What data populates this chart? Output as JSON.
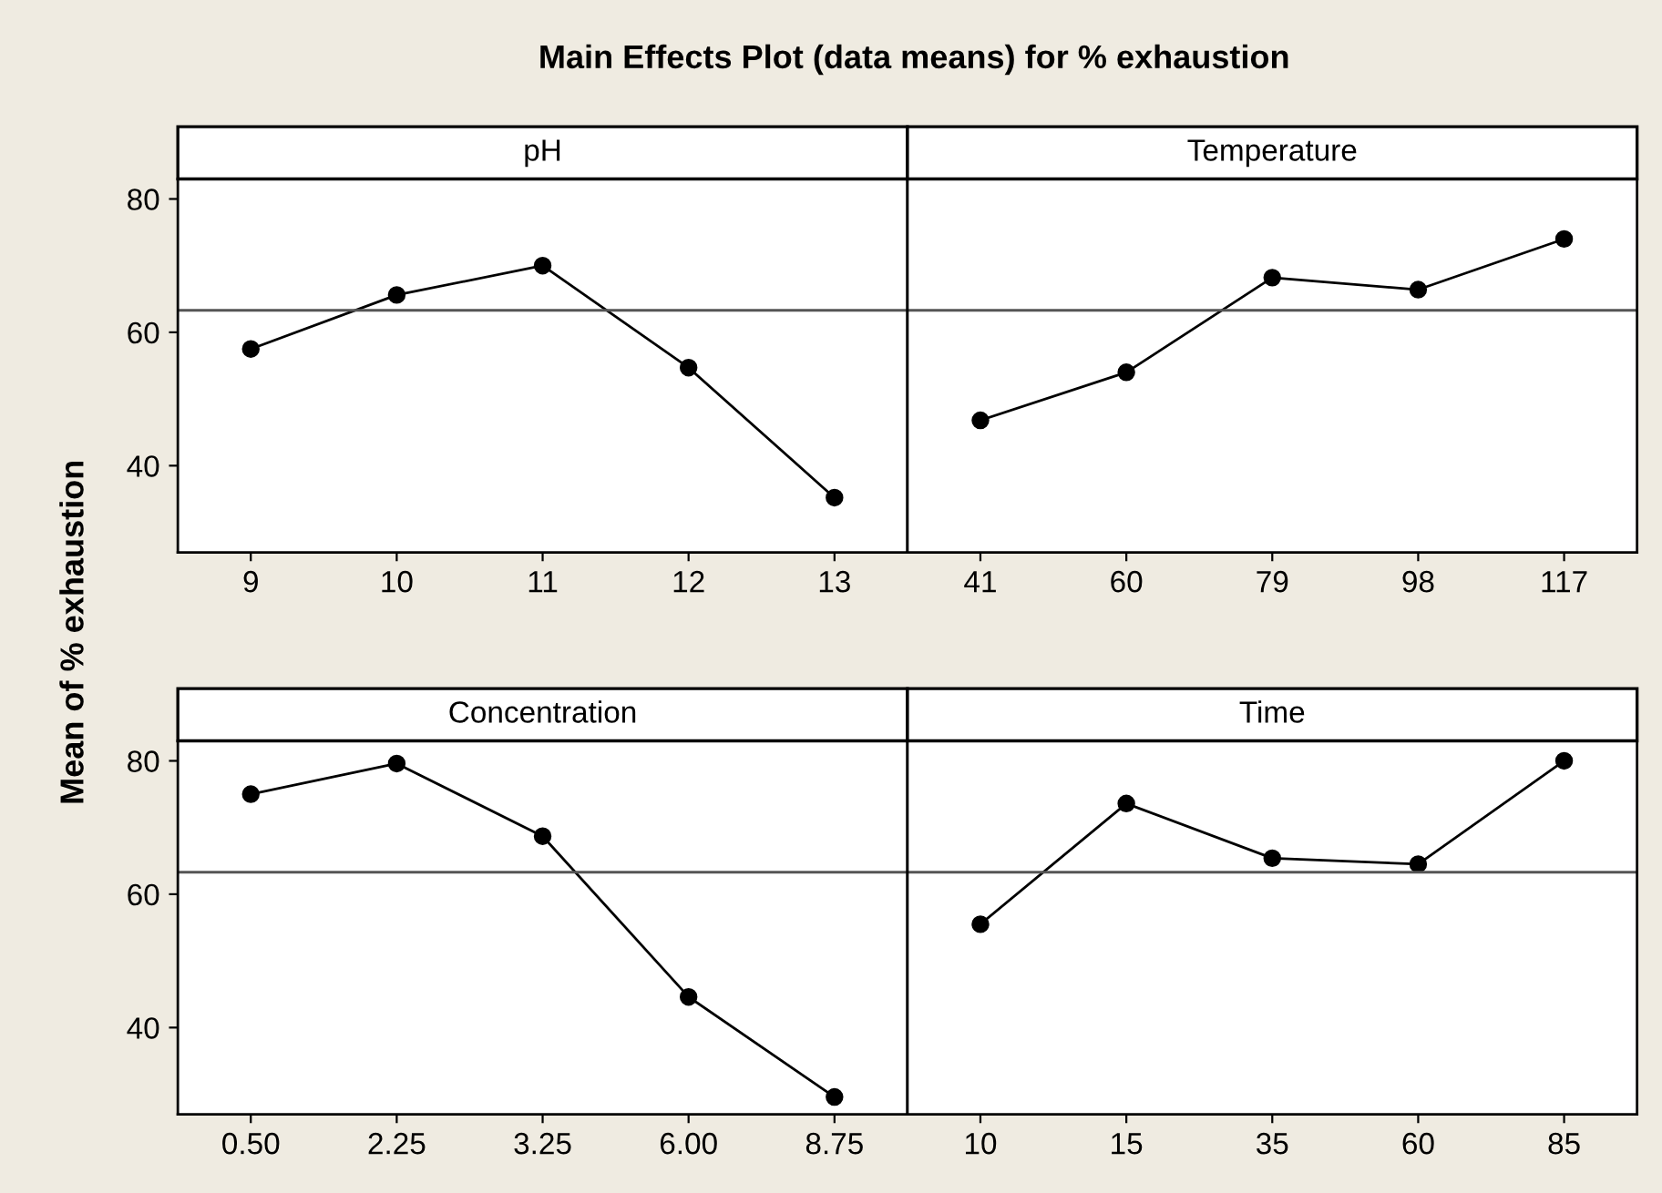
{
  "chart_data": [
    {
      "type": "line",
      "title": "pH",
      "annotations": [
        "Main Effects Plot (data means) for % exhaustion"
      ],
      "ylabel": "Mean of % exhaustion",
      "categories": [
        "9",
        "10",
        "11",
        "12",
        "13"
      ],
      "values": [
        57.5,
        65.6,
        70.0,
        54.7,
        35.2
      ],
      "color": "#000000",
      "marker": "circle",
      "ylim": [
        27,
        83
      ],
      "yticks": [
        40,
        60,
        80
      ],
      "ref_lines": [
        {
          "axis": "y",
          "value": 63.3
        }
      ]
    },
    {
      "type": "line",
      "title": "Temperature",
      "categories": [
        "41",
        "60",
        "79",
        "98",
        "117"
      ],
      "values": [
        46.8,
        54.0,
        68.2,
        66.4,
        74.0
      ],
      "color": "#000000",
      "marker": "circle",
      "ylim": [
        27,
        83
      ],
      "yticks": [
        40,
        60,
        80
      ],
      "tick_labels": "x",
      "ref_lines": [
        {
          "axis": "y",
          "value": 63.3
        }
      ]
    },
    {
      "type": "line",
      "title": "Concentration",
      "categories": [
        "0.50",
        "2.25",
        "3.25",
        "6.00",
        "8.75"
      ],
      "values": [
        75.0,
        79.6,
        68.7,
        44.6,
        29.6
      ],
      "color": "#000000",
      "marker": "circle",
      "ylim": [
        27,
        83
      ],
      "yticks": [
        40,
        60,
        80
      ],
      "ref_lines": [
        {
          "axis": "y",
          "value": 63.3
        }
      ]
    },
    {
      "type": "line",
      "title": "Time",
      "categories": [
        "10",
        "15",
        "35",
        "60",
        "85"
      ],
      "values": [
        55.5,
        73.6,
        65.4,
        64.5,
        80.0
      ],
      "color": "#000000",
      "marker": "circle",
      "ylim": [
        27,
        83
      ],
      "yticks": [
        40,
        60,
        80
      ],
      "tick_labels": "x",
      "ref_lines": [
        {
          "axis": "y",
          "value": 63.3
        }
      ]
    }
  ]
}
